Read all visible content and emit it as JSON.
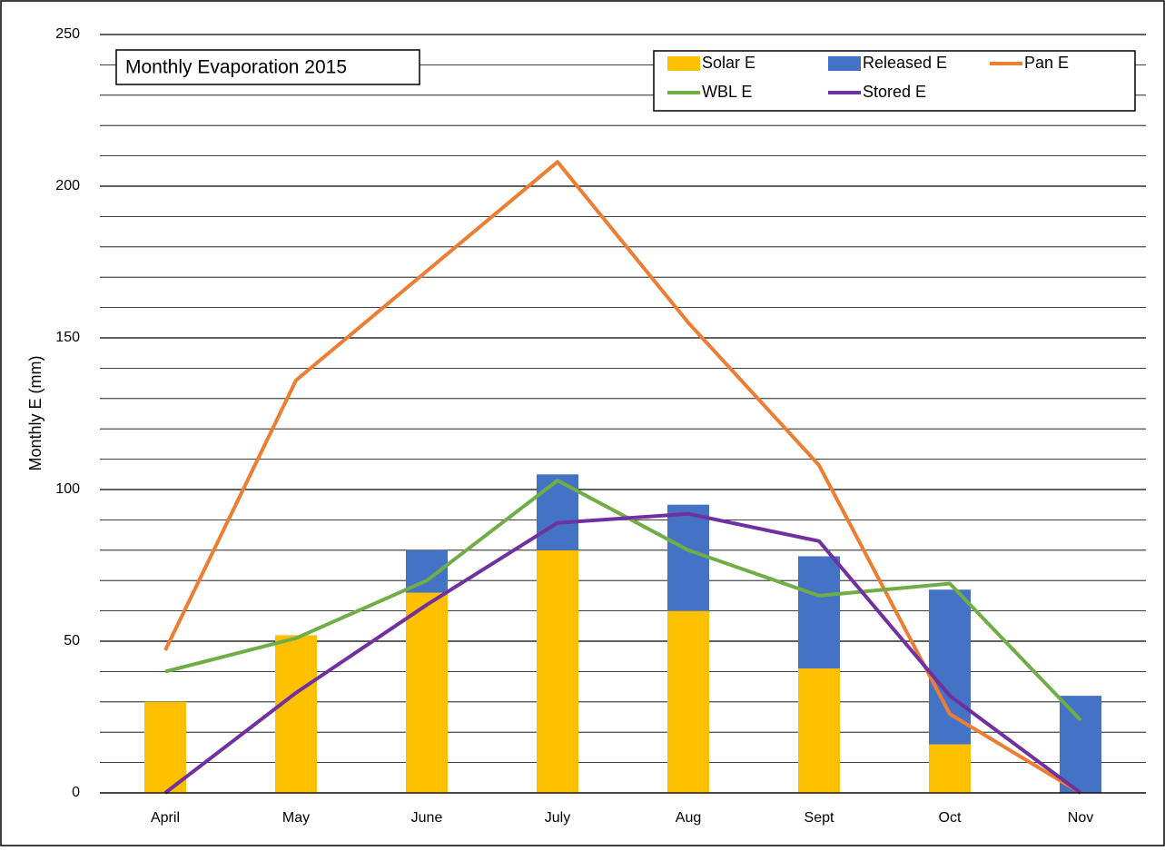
{
  "chart_data": {
    "type": "bar-line",
    "title": "Monthly Evaporation 2015",
    "y_label": "Monthly E (mm)",
    "categories": [
      "April",
      "May",
      "June",
      "July",
      "Aug",
      "Sept",
      "Oct",
      "Nov"
    ],
    "series": [
      {
        "name": "Solar E",
        "type": "bar",
        "color": "#ffc000",
        "values": [
          30,
          52,
          66,
          80,
          60,
          41,
          16,
          0
        ]
      },
      {
        "name": "Released E",
        "type": "bar",
        "color": "#4472c4",
        "values": [
          0,
          0,
          14,
          25,
          35,
          37,
          51,
          32
        ]
      },
      {
        "name": "Pan E",
        "type": "line",
        "color": "#ed7d31",
        "values": [
          47,
          136,
          172,
          208,
          155,
          108,
          26,
          0
        ]
      },
      {
        "name": "WBL E",
        "type": "line",
        "color": "#70ad47",
        "values": [
          40,
          51,
          70,
          103,
          80,
          65,
          69,
          24
        ]
      },
      {
        "name": "Stored E",
        "type": "line",
        "color": "#7030a0",
        "values": [
          0,
          33,
          62,
          89,
          92,
          83,
          32,
          0
        ]
      }
    ],
    "stacked": true,
    "ylim": [
      0,
      250
    ],
    "yticks": [
      0,
      50,
      100,
      150,
      200,
      250
    ],
    "minor_yticks": [
      10,
      20,
      30,
      40,
      60,
      70,
      80,
      90,
      110,
      120,
      130,
      140,
      160,
      170,
      180,
      190,
      210,
      220,
      230,
      240
    ],
    "grid": true
  }
}
